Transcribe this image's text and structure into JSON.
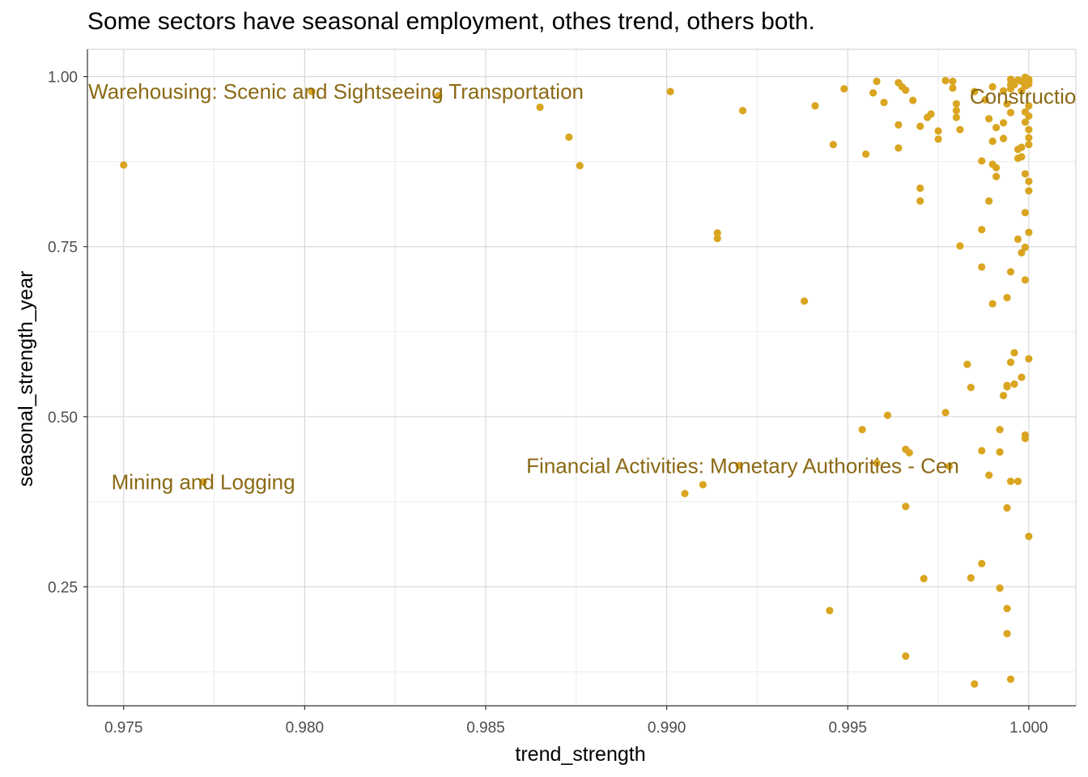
{
  "chart_data": {
    "type": "scatter",
    "title": "Some sectors have seasonal employment, othes trend, others both.",
    "xlabel": "trend_strength",
    "ylabel": "seasonal_strength_year",
    "xlim": [
      0.974,
      1.0013
    ],
    "ylim": [
      0.075,
      1.04
    ],
    "xticks": [
      0.975,
      0.98,
      0.985,
      0.99,
      0.995,
      1.0
    ],
    "xtick_labels": [
      "0.975",
      "0.980",
      "0.985",
      "0.990",
      "0.995",
      "1.000"
    ],
    "yticks": [
      0.25,
      0.5,
      0.75,
      1.0
    ],
    "ytick_labels": [
      "0.25",
      "0.50",
      "0.75",
      "1.00"
    ],
    "grid": true,
    "point_color": "#DAA520",
    "annotation_color": "#8B6914",
    "annotations": [
      {
        "text": "and Warehousing: Scenic and Sightseeing Transportation",
        "x": 0.9803,
        "y": 0.978
      },
      {
        "text": "Construction",
        "x": 1.0,
        "y": 0.971
      },
      {
        "text": "Financial Activities: Monetary Authorities - Cen",
        "x": 0.9921,
        "y": 0.428
      },
      {
        "text": "Mining and Logging",
        "x": 0.9772,
        "y": 0.404
      }
    ],
    "points": [
      [
        0.975,
        0.87
      ],
      [
        0.9772,
        0.404
      ],
      [
        0.9802,
        0.978
      ],
      [
        0.9837,
        0.972
      ],
      [
        0.9865,
        0.955
      ],
      [
        0.9873,
        0.911
      ],
      [
        0.9876,
        0.869
      ],
      [
        0.9901,
        0.978
      ],
      [
        0.9905,
        0.387
      ],
      [
        0.991,
        0.4
      ],
      [
        0.9914,
        0.77
      ],
      [
        0.9914,
        0.762
      ],
      [
        0.992,
        0.428
      ],
      [
        0.9921,
        0.95
      ],
      [
        0.9938,
        0.67
      ],
      [
        0.9941,
        0.957
      ],
      [
        0.9945,
        0.215
      ],
      [
        0.9946,
        0.9
      ],
      [
        0.9949,
        0.982
      ],
      [
        0.9954,
        0.481
      ],
      [
        0.9955,
        0.886
      ],
      [
        0.9957,
        0.976
      ],
      [
        0.9958,
        0.993
      ],
      [
        0.9958,
        0.432
      ],
      [
        0.996,
        0.962
      ],
      [
        0.9961,
        0.502
      ],
      [
        0.9964,
        0.895
      ],
      [
        0.9964,
        0.929
      ],
      [
        0.9964,
        0.991
      ],
      [
        0.9965,
        0.985
      ],
      [
        0.9966,
        0.98
      ],
      [
        0.9966,
        0.452
      ],
      [
        0.9966,
        0.368
      ],
      [
        0.9966,
        0.148
      ],
      [
        0.9967,
        0.447
      ],
      [
        0.9968,
        0.965
      ],
      [
        0.997,
        0.836
      ],
      [
        0.997,
        0.817
      ],
      [
        0.997,
        0.927
      ],
      [
        0.9971,
        0.262
      ],
      [
        0.9972,
        0.94
      ],
      [
        0.9973,
        0.945
      ],
      [
        0.9975,
        0.908
      ],
      [
        0.9975,
        0.92
      ],
      [
        0.9977,
        0.994
      ],
      [
        0.9977,
        0.506
      ],
      [
        0.9978,
        0.427
      ],
      [
        0.9979,
        0.983
      ],
      [
        0.9979,
        0.993
      ],
      [
        0.998,
        0.95
      ],
      [
        0.998,
        0.94
      ],
      [
        0.998,
        0.96
      ],
      [
        0.9981,
        0.751
      ],
      [
        0.9981,
        0.922
      ],
      [
        0.9983,
        0.577
      ],
      [
        0.9984,
        0.543
      ],
      [
        0.9984,
        0.263
      ],
      [
        0.9985,
        0.107
      ],
      [
        0.9985,
        0.978
      ],
      [
        0.9987,
        0.775
      ],
      [
        0.9987,
        0.876
      ],
      [
        0.9987,
        0.72
      ],
      [
        0.9987,
        0.45
      ],
      [
        0.9987,
        0.284
      ],
      [
        0.9988,
        0.966
      ],
      [
        0.9989,
        0.414
      ],
      [
        0.9989,
        0.938
      ],
      [
        0.9989,
        0.817
      ],
      [
        0.999,
        0.985
      ],
      [
        0.999,
        0.871
      ],
      [
        0.999,
        0.666
      ],
      [
        0.999,
        0.905
      ],
      [
        0.9991,
        0.866
      ],
      [
        0.9991,
        0.853
      ],
      [
        0.9991,
        0.925
      ],
      [
        0.9992,
        0.248
      ],
      [
        0.9992,
        0.481
      ],
      [
        0.9992,
        0.448
      ],
      [
        0.9993,
        0.979
      ],
      [
        0.9993,
        0.531
      ],
      [
        0.9993,
        0.932
      ],
      [
        0.9993,
        0.909
      ],
      [
        0.9994,
        0.544
      ],
      [
        0.9994,
        0.366
      ],
      [
        0.9994,
        0.218
      ],
      [
        0.9994,
        0.181
      ],
      [
        0.9994,
        0.675
      ],
      [
        0.9994,
        0.96
      ],
      [
        0.9994,
        0.546
      ],
      [
        0.9995,
        0.988
      ],
      [
        0.9995,
        0.996
      ],
      [
        0.9995,
        0.58
      ],
      [
        0.9995,
        0.713
      ],
      [
        0.9995,
        0.405
      ],
      [
        0.9995,
        0.114
      ],
      [
        0.9995,
        0.947
      ],
      [
        0.9995,
        0.982
      ],
      [
        0.9996,
        0.594
      ],
      [
        0.9996,
        0.548
      ],
      [
        0.9996,
        0.988
      ],
      [
        0.9996,
        0.99
      ],
      [
        0.9997,
        0.995
      ],
      [
        0.9997,
        0.761
      ],
      [
        0.9997,
        0.88
      ],
      [
        0.9997,
        0.893
      ],
      [
        0.9997,
        0.405
      ],
      [
        0.9998,
        0.993
      ],
      [
        0.9998,
        0.979
      ],
      [
        0.9998,
        0.558
      ],
      [
        0.9998,
        0.741
      ],
      [
        0.9998,
        0.896
      ],
      [
        0.9998,
        0.882
      ],
      [
        0.9999,
        0.999
      ],
      [
        0.9999,
        0.986
      ],
      [
        0.9999,
        0.749
      ],
      [
        0.9999,
        0.701
      ],
      [
        0.9999,
        0.8
      ],
      [
        0.9999,
        0.857
      ],
      [
        0.9999,
        0.948
      ],
      [
        0.9999,
        0.468
      ],
      [
        0.9999,
        0.473
      ],
      [
        0.9999,
        0.998
      ],
      [
        0.9999,
        0.933
      ],
      [
        1.0,
        0.585
      ],
      [
        1.0,
        0.994
      ],
      [
        1.0,
        0.996
      ],
      [
        1.0,
        0.846
      ],
      [
        1.0,
        0.832
      ],
      [
        1.0,
        0.771
      ],
      [
        1.0,
        0.922
      ],
      [
        1.0,
        0.91
      ],
      [
        1.0,
        0.9
      ],
      [
        1.0,
        0.324
      ],
      [
        1.0,
        0.957
      ],
      [
        1.0,
        0.942
      ],
      [
        1.0,
        0.989
      ]
    ]
  }
}
